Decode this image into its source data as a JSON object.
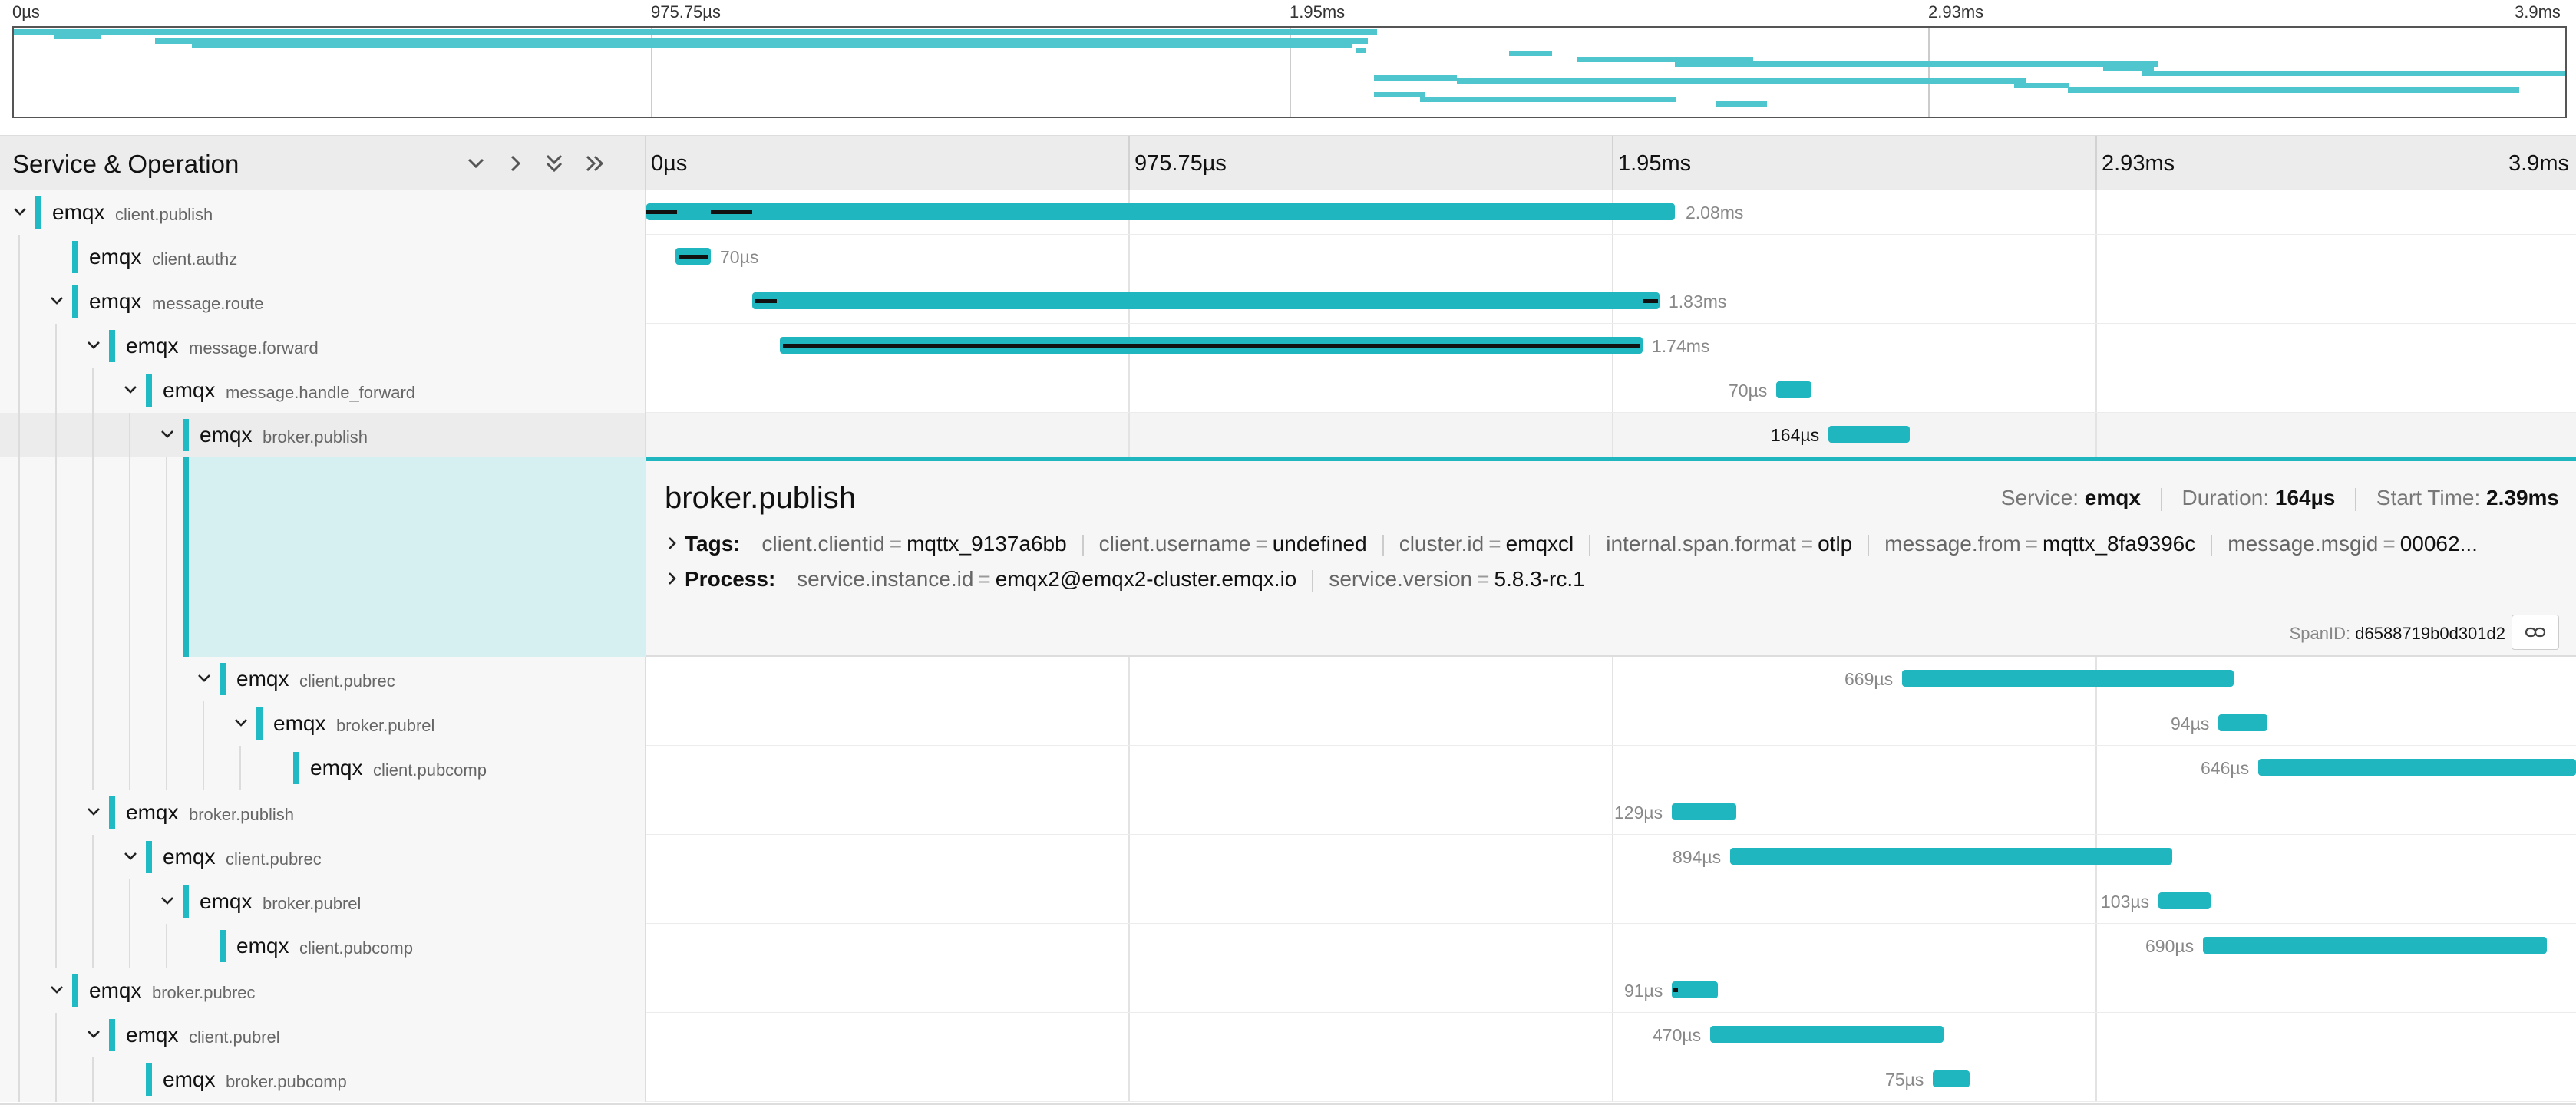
{
  "minimap": {
    "ticks": [
      "0µs",
      "975.75µs",
      "1.95ms",
      "2.93ms",
      "3.9ms"
    ]
  },
  "header": {
    "title": "Service & Operation",
    "ticks": [
      "0µs",
      "975.75µs",
      "1.95ms",
      "2.93ms",
      "3.9ms"
    ]
  },
  "spans": [
    {
      "service": "emqx",
      "operation": "client.publish",
      "duration": "2.08ms"
    },
    {
      "service": "emqx",
      "operation": "client.authz",
      "duration": "70µs"
    },
    {
      "service": "emqx",
      "operation": "message.route",
      "duration": "1.83ms"
    },
    {
      "service": "emqx",
      "operation": "message.forward",
      "duration": "1.74ms"
    },
    {
      "service": "emqx",
      "operation": "message.handle_forward",
      "duration": "70µs"
    },
    {
      "service": "emqx",
      "operation": "broker.publish",
      "duration": "164µs"
    },
    {
      "service": "emqx",
      "operation": "client.pubrec",
      "duration": "669µs"
    },
    {
      "service": "emqx",
      "operation": "broker.pubrel",
      "duration": "94µs"
    },
    {
      "service": "emqx",
      "operation": "client.pubcomp",
      "duration": "646µs"
    },
    {
      "service": "emqx",
      "operation": "broker.publish",
      "duration": "129µs"
    },
    {
      "service": "emqx",
      "operation": "client.pubrec",
      "duration": "894µs"
    },
    {
      "service": "emqx",
      "operation": "broker.pubrel",
      "duration": "103µs"
    },
    {
      "service": "emqx",
      "operation": "client.pubcomp",
      "duration": "690µs"
    },
    {
      "service": "emqx",
      "operation": "broker.pubrec",
      "duration": "91µs"
    },
    {
      "service": "emqx",
      "operation": "client.pubrel",
      "duration": "470µs"
    },
    {
      "service": "emqx",
      "operation": "broker.pubcomp",
      "duration": "75µs"
    }
  ],
  "detail": {
    "title": "broker.publish",
    "service_label": "Service:",
    "service": "emqx",
    "duration_label": "Duration:",
    "duration": "164µs",
    "start_label": "Start Time:",
    "start": "2.39ms",
    "tags_label": "Tags:",
    "tags": [
      {
        "k": "client.clientid",
        "v": "mqttx_9137a6bb"
      },
      {
        "k": "client.username",
        "v": "undefined"
      },
      {
        "k": "cluster.id",
        "v": "emqxcl"
      },
      {
        "k": "internal.span.format",
        "v": "otlp"
      },
      {
        "k": "message.from",
        "v": "mqttx_8fa9396c"
      },
      {
        "k": "message.msgid",
        "v": "00062..."
      }
    ],
    "process_label": "Process:",
    "process": [
      {
        "k": "service.instance.id",
        "v": "emqx2@emqx2-cluster.emqx.io"
      },
      {
        "k": "service.version",
        "v": "5.8.3-rc.1"
      }
    ],
    "span_id_label": "SpanID:",
    "span_id": "d6588719b0d301d2"
  },
  "colors": {
    "accent": "#1fb6c0",
    "minimap_bar": "#4fc6ce"
  },
  "icons": {
    "collapse_one": "chevron-down-icon",
    "expand_one": "chevron-right-icon",
    "collapse_all": "double-chevron-down-icon",
    "expand_all": "double-chevron-right-icon",
    "link": "link-icon"
  }
}
